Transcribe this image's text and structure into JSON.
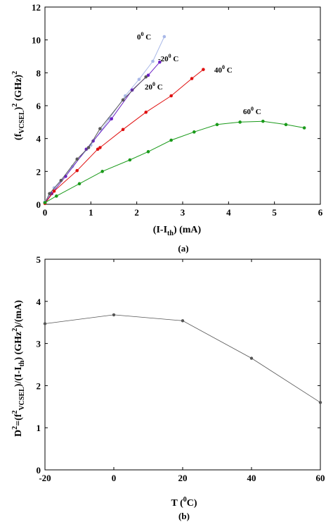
{
  "chart_data": [
    {
      "type": "line",
      "caption": "(a)",
      "xlabel": "(I-I",
      "xlabel_sub": "th",
      "xlabel_tail": ") (mA)",
      "ylabel": "(f",
      "ylabel_sub": "VCSEL",
      "ylabel_tail": ")",
      "ylabel_sup": "2",
      "ylabel_unit": " (GHz)",
      "ylabel_unit_sup": "2",
      "xlim": [
        0,
        6
      ],
      "ylim": [
        0,
        12
      ],
      "xticks": [
        "0",
        "1",
        "2",
        "3",
        "4",
        "5",
        "6"
      ],
      "yticks": [
        "0",
        "2",
        "4",
        "6",
        "8",
        "10",
        "12"
      ],
      "series": [
        {
          "name": "0",
          "name_sup": "0",
          "name_tail": " C",
          "color": "#a9b8e8",
          "x": [
            0,
            0.2,
            0.6,
            1.0,
            1.4,
            1.75,
            2.05,
            2.35,
            2.6
          ],
          "y": [
            0.15,
            1.0,
            2.3,
            3.6,
            5.2,
            6.6,
            7.6,
            8.7,
            10.2
          ]
        },
        {
          "name": "-20",
          "name_sup": "0",
          "name_tail": " C",
          "color": "#6a1fc4",
          "x": [
            0,
            0.15,
            0.45,
            0.9,
            1.05,
            1.45,
            1.9,
            2.25,
            2.5
          ],
          "y": [
            0.1,
            0.65,
            1.7,
            3.35,
            3.85,
            5.2,
            6.95,
            7.85,
            8.65
          ]
        },
        {
          "name": "20",
          "name_sup": "0",
          "name_tail": " C",
          "color": "#5a5a5a",
          "x": [
            0,
            0.1,
            0.35,
            0.7,
            0.95,
            1.2,
            1.7,
            2.2
          ],
          "y": [
            0.1,
            0.65,
            1.45,
            2.75,
            3.45,
            4.6,
            6.35,
            7.75
          ]
        },
        {
          "name": "40",
          "name_sup": "0",
          "name_tail": " C",
          "color": "#e01010",
          "x": [
            0,
            0.2,
            0.7,
            1.15,
            1.2,
            1.7,
            2.2,
            2.75,
            3.2,
            3.45
          ],
          "y": [
            0.05,
            0.8,
            2.05,
            3.35,
            3.45,
            4.55,
            5.6,
            6.6,
            7.65,
            8.2
          ]
        },
        {
          "name": "60",
          "name_sup": "0",
          "name_tail": " C",
          "color": "#1a9a1a",
          "x": [
            0,
            0.25,
            0.75,
            1.25,
            1.85,
            2.25,
            2.75,
            3.25,
            3.75,
            4.25,
            4.75,
            5.25,
            5.65
          ],
          "y": [
            0.1,
            0.5,
            1.25,
            2.0,
            2.7,
            3.2,
            3.9,
            4.4,
            4.85,
            5.0,
            5.05,
            4.85,
            4.65
          ]
        }
      ]
    },
    {
      "type": "line",
      "caption": "(b)",
      "xlabel": "T (",
      "xlabel_sup": "0",
      "xlabel_tail": "C)",
      "ylabel": "D",
      "ylabel_sup": "2",
      "ylabel_a": "=(f",
      "ylabel_a_sup": "2",
      "ylabel_a_sub": "VCSEL",
      "ylabel_b": ")/(I-I",
      "ylabel_b_sub": "th",
      "ylabel_c": ") (GHz",
      "ylabel_c_sup": "2",
      "ylabel_d": ")/(mA)",
      "xlim": [
        -20,
        60
      ],
      "ylim": [
        0,
        5
      ],
      "xticks": [
        "-20",
        "0",
        "20",
        "40",
        "60"
      ],
      "yticks": [
        "0",
        "1",
        "2",
        "3",
        "4",
        "5"
      ],
      "series": [
        {
          "color": "#555555",
          "x": [
            -20,
            0,
            20,
            40,
            60
          ],
          "y": [
            3.47,
            3.68,
            3.54,
            2.65,
            1.6
          ]
        }
      ]
    }
  ]
}
